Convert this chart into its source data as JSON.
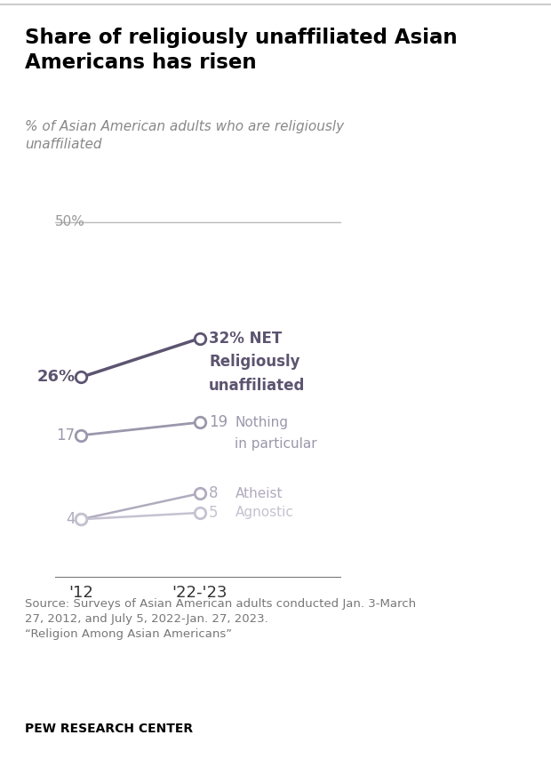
{
  "title": "Share of religiously unaffiliated Asian\nAmericans has risen",
  "subtitle": "% of Asian American adults who are religiously\nunaffiliated",
  "x_labels": [
    "'12",
    "'22-'23"
  ],
  "x_positions": [
    0,
    1
  ],
  "series": [
    {
      "name": "NET Religiously unaffiliated",
      "values": [
        26,
        32
      ],
      "color": "#5c5470",
      "linewidth": 2.5,
      "label_left": "26%",
      "label_right": "32%",
      "right_label_lines": [
        "32% NET",
        "Religiously",
        "unaffiliated"
      ],
      "right_label_bold": true
    },
    {
      "name": "Nothing in particular",
      "values": [
        17,
        19
      ],
      "color": "#9b97ab",
      "linewidth": 2.0,
      "label_left": "17",
      "label_right": "19",
      "right_label_lines": [
        "19",
        "Nothing",
        "in particular"
      ],
      "right_label_bold": false
    },
    {
      "name": "Atheist",
      "values": [
        4,
        8
      ],
      "color": "#b0abbe",
      "linewidth": 1.8,
      "label_left": "4",
      "label_right": "8",
      "right_label_lines": [
        "8",
        "Atheist"
      ],
      "right_label_bold": false
    },
    {
      "name": "Agnostic",
      "values": [
        4,
        5
      ],
      "color": "#c5c2d0",
      "linewidth": 1.8,
      "label_left": "",
      "label_right": "5",
      "right_label_lines": [
        "5",
        "Agnostic"
      ],
      "right_label_bold": false
    }
  ],
  "ylim": [
    -5,
    55
  ],
  "reference_line_y": 50,
  "reference_line_label": "50%",
  "source_text": "Source: Surveys of Asian American adults conducted Jan. 3-March\n27, 2012, and July 5, 2022-Jan. 27, 2023.\n“Religion Among Asian Americans”",
  "footer_text": "PEW RESEARCH CENTER",
  "background_color": "#ffffff",
  "title_color": "#000000",
  "subtitle_color": "#888888",
  "ref_line_color": "#bbbbbb",
  "border_top_color": "#cccccc"
}
